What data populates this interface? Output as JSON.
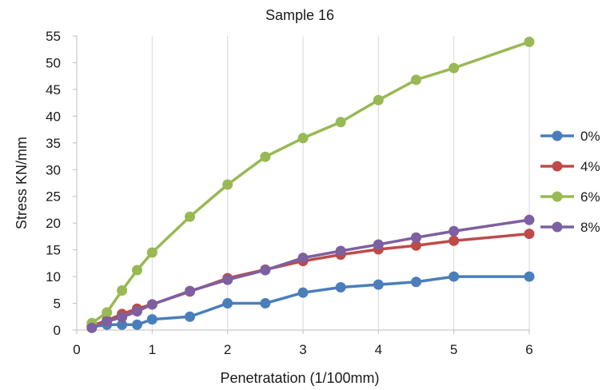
{
  "chart_data": {
    "type": "line",
    "title": "Sample 16",
    "xlabel": "Penetratation (1/100mm)",
    "ylabel": "Stress KN/mm",
    "xlim": [
      0,
      6
    ],
    "ylim": [
      0,
      55
    ],
    "xticks": [
      0,
      1,
      2,
      3,
      4,
      5,
      6
    ],
    "yticks": [
      0,
      5,
      10,
      15,
      20,
      25,
      30,
      35,
      40,
      45,
      50,
      55
    ],
    "grid": "vertical",
    "legend_position": "right",
    "x": [
      0.2,
      0.4,
      0.6,
      0.8,
      1,
      1.5,
      2,
      2.5,
      3,
      3.5,
      4,
      4.5,
      5,
      6
    ],
    "series": [
      {
        "name": "0%",
        "color": "#4a7ebb",
        "values": [
          0.6,
          1,
          1,
          1,
          2,
          2.5,
          5,
          5,
          7,
          8,
          8.5,
          9,
          10,
          10
        ]
      },
      {
        "name": "4%",
        "color": "#be4b48",
        "values": [
          0.8,
          1.8,
          3,
          4,
          4.8,
          7.2,
          9.7,
          11.3,
          12.9,
          14.1,
          15.1,
          15.8,
          16.7,
          18
        ]
      },
      {
        "name": "6%",
        "color": "#98b954",
        "values": [
          1.3,
          3.3,
          7.4,
          11.2,
          14.5,
          21.2,
          27.2,
          32.4,
          35.9,
          38.9,
          43,
          46.8,
          49,
          53.9
        ]
      },
      {
        "name": "8%",
        "color": "#7d60a0",
        "values": [
          0.4,
          1.6,
          2.4,
          3.5,
          4.8,
          7.3,
          9.4,
          11.2,
          13.5,
          14.8,
          16,
          17.3,
          18.5,
          20.6
        ]
      }
    ]
  }
}
